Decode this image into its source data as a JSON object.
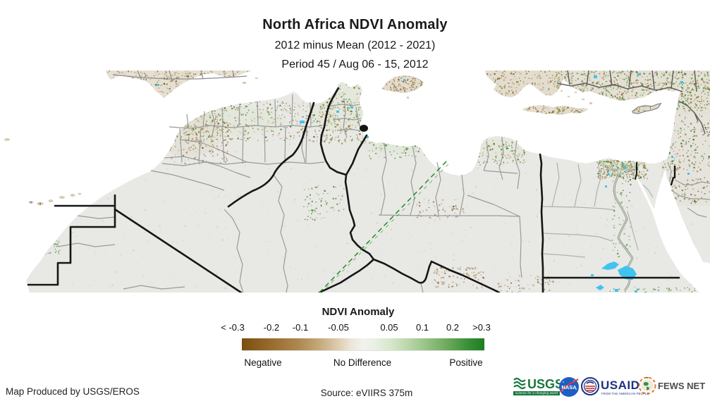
{
  "header": {
    "title": "North Africa NDVI Anomaly",
    "subtitle1": "2012 minus Mean (2012 - 2021)",
    "subtitle2": "Period 45 / Aug 06 - 15, 2012"
  },
  "legend": {
    "title": "NDVI Anomaly",
    "ticks": [
      "< -0.3",
      "-0.2",
      "-0.1",
      "-0.05",
      "0.05",
      "0.1",
      "0.2",
      ">0.3"
    ],
    "negative_label": "Negative",
    "no_difference_label": "No Difference",
    "positive_label": "Positive",
    "colors": {
      "negative_end": "#7a4e12",
      "center": "#f2f1ef",
      "positive_end": "#1d7e22"
    }
  },
  "map": {
    "sea_color": "#ffffff",
    "land_color": "#e8e8e5",
    "country_border_color": "#161616",
    "admin_border_color": "#9a9a98",
    "water_color": "#41c3f0",
    "anomaly_line_color": "#1f8a1f"
  },
  "footer": {
    "produced_by": "Map Produced by USGS/EROS",
    "source": "Source: eVIIRS 375m"
  },
  "logos": {
    "usgs": {
      "name": "USGS",
      "tagline": "science for a changing world",
      "color": "#1b7742"
    },
    "nasa": {
      "name": "NASA",
      "color": "#1f5fc4"
    },
    "usaid": {
      "name": "USAID",
      "tagline": "FROM THE AMERICAN PEOPLE",
      "color": "#1f3080"
    },
    "fewsnet": {
      "name": "FEWS NET",
      "color": "#4d4d49"
    }
  }
}
